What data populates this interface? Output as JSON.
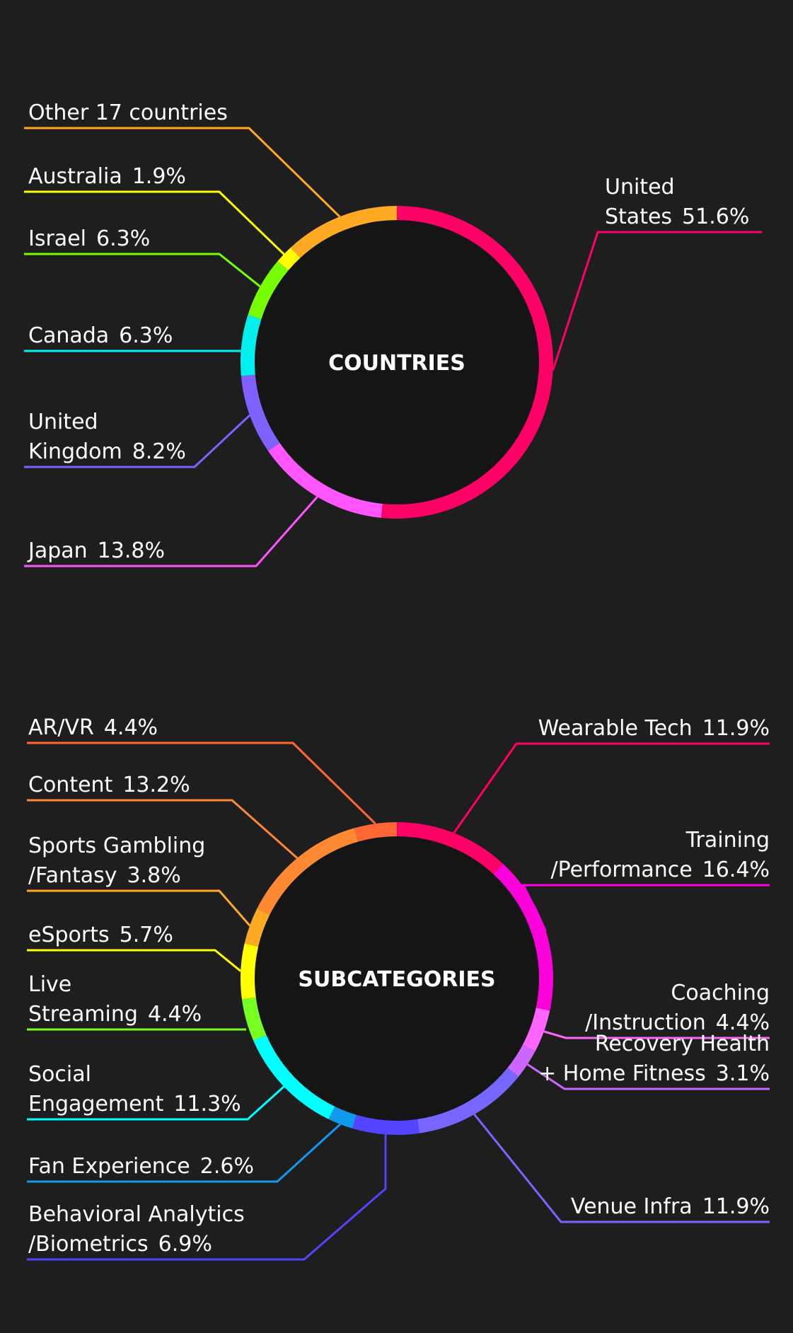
{
  "chart_data": [
    {
      "type": "pie",
      "title": "COUNTRIES",
      "slices": [
        {
          "label": "United States",
          "display": [
            "United",
            "States"
          ],
          "pct_text": "51.6%",
          "value": 51.6,
          "color": "#ff0066"
        },
        {
          "label": "Japan",
          "display": [
            "Japan"
          ],
          "pct_text": "13.8%",
          "value": 13.8,
          "color": "#ff55ff"
        },
        {
          "label": "United Kingdom",
          "display": [
            "United",
            "Kingdom"
          ],
          "pct_text": "8.2%",
          "value": 8.2,
          "color": "#8060ff"
        },
        {
          "label": "Canada",
          "display": [
            "Canada"
          ],
          "pct_text": "6.3%",
          "value": 6.3,
          "color": "#00f0f0"
        },
        {
          "label": "Israel",
          "display": [
            "Israel"
          ],
          "pct_text": "6.3%",
          "value": 6.3,
          "color": "#77ff00"
        },
        {
          "label": "Australia",
          "display": [
            "Australia"
          ],
          "pct_text": "1.9%",
          "value": 1.9,
          "color": "#ffff00"
        },
        {
          "label": "Other 17 countries",
          "display": [
            "Other 17 countries"
          ],
          "pct_text": "",
          "value": 11.9,
          "color": "#ffaa22"
        }
      ]
    },
    {
      "type": "pie",
      "title": "SUBCATEGORIES",
      "slices": [
        {
          "label": "Wearable Tech",
          "display": [
            "Wearable Tech"
          ],
          "pct_text": "11.9%",
          "value": 11.9,
          "color": "#ff0066"
        },
        {
          "label": "Training/Performance",
          "display": [
            "Training",
            "/Performance"
          ],
          "pct_text": "16.4%",
          "value": 16.4,
          "color": "#ff00dd"
        },
        {
          "label": "Coaching/Instruction",
          "display": [
            "Coaching",
            "/Instruction"
          ],
          "pct_text": "4.4%",
          "value": 4.4,
          "color": "#ff66ff"
        },
        {
          "label": "Recovery Health + Home Fitness",
          "display": [
            "Recovery Health",
            "+ Home Fitness"
          ],
          "pct_text": "3.1%",
          "value": 3.1,
          "color": "#cc66ff"
        },
        {
          "label": "Venue Infra",
          "display": [
            "Venue Infra"
          ],
          "pct_text": "11.9%",
          "value": 11.9,
          "color": "#7766ff"
        },
        {
          "label": "Behavioral Analytics/Biometrics",
          "display": [
            "Behavioral Analytics",
            "/Biometrics"
          ],
          "pct_text": "6.9%",
          "value": 6.9,
          "color": "#5544ff"
        },
        {
          "label": "Fan Experience",
          "display": [
            "Fan Experience"
          ],
          "pct_text": "2.6%",
          "value": 2.6,
          "color": "#1199ee"
        },
        {
          "label": "Social Engagement",
          "display": [
            "Social",
            "Engagement"
          ],
          "pct_text": "11.3%",
          "value": 11.3,
          "color": "#00ffff"
        },
        {
          "label": "Live Streaming",
          "display": [
            "Live",
            "Streaming"
          ],
          "pct_text": "4.4%",
          "value": 4.4,
          "color": "#77ff22"
        },
        {
          "label": "eSports",
          "display": [
            "eSports"
          ],
          "pct_text": "5.7%",
          "value": 5.7,
          "color": "#ffff00"
        },
        {
          "label": "Sports Gambling/Fantasy",
          "display": [
            "Sports Gambling",
            "/Fantasy"
          ],
          "pct_text": "3.8%",
          "value": 3.8,
          "color": "#ffaa22"
        },
        {
          "label": "Content",
          "display": [
            "Content"
          ],
          "pct_text": "13.2%",
          "value": 13.2,
          "color": "#ff8833"
        },
        {
          "label": "AR/VR",
          "display": [
            "AR/VR"
          ],
          "pct_text": "4.4%",
          "value": 4.4,
          "color": "#ff6633"
        }
      ]
    }
  ]
}
